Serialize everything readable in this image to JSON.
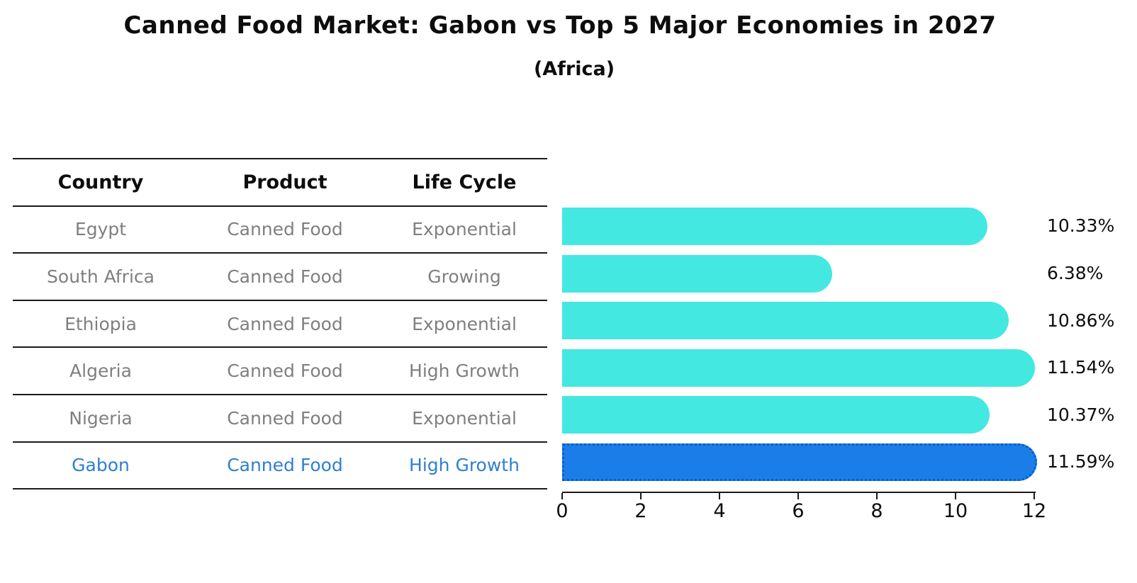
{
  "header": {
    "title": "Canned Food Market: Gabon vs Top 5 Major Economies in 2027",
    "subtitle": "(Africa)"
  },
  "table": {
    "columns": [
      "Country",
      "Product",
      "Life Cycle"
    ],
    "rows": [
      {
        "country": "Egypt",
        "product": "Canned Food",
        "life_cycle": "Exponential",
        "highlight": false
      },
      {
        "country": "South Africa",
        "product": "Canned Food",
        "life_cycle": "Growing",
        "highlight": false
      },
      {
        "country": "Ethiopia",
        "product": "Canned Food",
        "life_cycle": "Exponential",
        "highlight": false
      },
      {
        "country": "Algeria",
        "product": "Canned Food",
        "life_cycle": "High Growth",
        "highlight": false
      },
      {
        "country": "Nigeria",
        "product": "Canned Food",
        "life_cycle": "Exponential",
        "highlight": false
      },
      {
        "country": "Gabon",
        "product": "Canned Food",
        "life_cycle": "High Growth",
        "highlight": true
      }
    ]
  },
  "chart_data": {
    "type": "bar",
    "orientation": "horizontal",
    "title": "Canned Food Market: Gabon vs Top 5 Major Economies in 2027",
    "subtitle": "(Africa)",
    "categories": [
      "Egypt",
      "South Africa",
      "Ethiopia",
      "Algeria",
      "Nigeria",
      "Gabon"
    ],
    "values": [
      10.33,
      6.38,
      10.86,
      11.54,
      10.37,
      11.59
    ],
    "value_labels": [
      "10.33%",
      "6.38%",
      "10.86%",
      "11.54%",
      "10.37%",
      "11.59%"
    ],
    "unit": "%",
    "xlim": [
      0,
      12
    ],
    "x_ticks": [
      "0",
      "2",
      "4",
      "6",
      "8",
      "10",
      "12"
    ],
    "grid": false,
    "legend": "none",
    "highlight_index": 5,
    "bar_color": "#43e8e1",
    "highlight_color": "#1b7ee8",
    "highlight_edge_color": "#0b5bd0",
    "highlight_text_color": "#2e7fd1",
    "text_color": "#0d0d0d",
    "muted_text_color": "#7f7f7f"
  }
}
